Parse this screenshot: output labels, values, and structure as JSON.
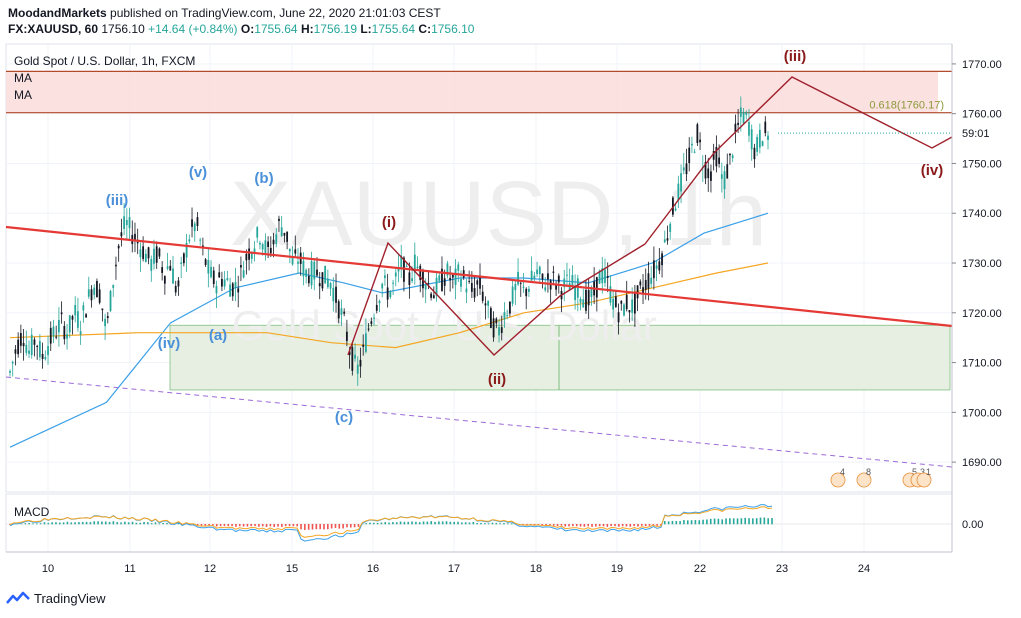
{
  "header": {
    "author": "MoodandMarkets",
    "published": "published on TradingView.com, June 22, 2020 21:01:03 CEST",
    "symbol": "FX:XAUUSD, 60",
    "last": "1756.10",
    "change": "+14.64 (+0.84%)",
    "o_label": "O:",
    "o": "1755.64",
    "h_label": "H:",
    "h": "1756.19",
    "l_label": "L:",
    "l": "1755.64",
    "c_label": "C:",
    "c": "1756.10"
  },
  "legend": {
    "title": "Gold Spot / U.S. Dollar, 1h, FXCM",
    "ma1": "MA",
    "ma2": "MA",
    "macd": "MACD"
  },
  "watermark": {
    "symbol": "XAUUSD, 1h",
    "name": "Gold Spot / U.S. Dollar"
  },
  "footer": {
    "brand": "TradingView"
  },
  "colors": {
    "up": "#26a69a",
    "down": "#131722",
    "trend": "#e53935",
    "wave_dark": "#8b1a1a",
    "wave_blue": "#4a90d9",
    "ma_fast": "#3aa0e8",
    "ma_slow": "#f5a623",
    "zone_red": "#fcdcdc",
    "zone_green": "#e6efe1"
  },
  "chart_data": {
    "type": "candlestick",
    "symbol": "XAUUSD",
    "timeframe": "1h",
    "ylim": [
      1684,
      1774
    ],
    "y_ticks": [
      "1770.00",
      "1760.00",
      "1750.00",
      "1740.00",
      "1730.00",
      "1720.00",
      "1710.00",
      "1700.00",
      "1690.00"
    ],
    "macd_tick": "0.00",
    "x_ticks": [
      "10",
      "11",
      "12",
      "15",
      "16",
      "17",
      "18",
      "19",
      "22",
      "23",
      "24"
    ],
    "fib_label": "0.618(1760.17)",
    "time_left_label": "59:01",
    "last_price_label": "1756.10",
    "resistance_zone": [
      1760.2,
      1768.5
    ],
    "support_zone": [
      1704.5,
      1717.5
    ],
    "price_path": [
      [
        0,
        1708
      ],
      [
        1,
        1713
      ],
      [
        2,
        1716
      ],
      [
        3,
        1712
      ],
      [
        4,
        1715
      ],
      [
        5,
        1711
      ],
      [
        6,
        1714
      ],
      [
        7,
        1716
      ],
      [
        8,
        1718
      ],
      [
        9,
        1716
      ],
      [
        10,
        1720
      ],
      [
        11,
        1718
      ],
      [
        12,
        1722
      ],
      [
        13,
        1726
      ],
      [
        14,
        1724
      ],
      [
        15,
        1716
      ],
      [
        16,
        1726
      ],
      [
        17,
        1734
      ],
      [
        18,
        1738
      ],
      [
        19,
        1736
      ],
      [
        20,
        1734
      ],
      [
        21,
        1732
      ],
      [
        22,
        1730
      ],
      [
        23,
        1732
      ],
      [
        24,
        1728
      ],
      [
        25,
        1730
      ],
      [
        26,
        1724
      ],
      [
        27,
        1730
      ],
      [
        28,
        1736
      ],
      [
        29,
        1738
      ],
      [
        30,
        1732
      ],
      [
        31,
        1728
      ],
      [
        32,
        1726
      ],
      [
        33,
        1727
      ],
      [
        34,
        1726
      ],
      [
        35,
        1725
      ],
      [
        36,
        1728
      ],
      [
        37,
        1732
      ],
      [
        38,
        1734
      ],
      [
        39,
        1736
      ],
      [
        40,
        1732
      ],
      [
        41,
        1734
      ],
      [
        42,
        1738
      ],
      [
        43,
        1736
      ],
      [
        44,
        1730
      ],
      [
        45,
        1731
      ],
      [
        46,
        1728
      ],
      [
        47,
        1728
      ],
      [
        48,
        1728
      ],
      [
        49,
        1727
      ],
      [
        50,
        1726
      ],
      [
        51,
        1722
      ],
      [
        52,
        1718
      ],
      [
        53,
        1712
      ],
      [
        54,
        1708
      ],
      [
        55,
        1712
      ],
      [
        56,
        1718
      ],
      [
        57,
        1722
      ],
      [
        58,
        1726
      ],
      [
        59,
        1724
      ],
      [
        60,
        1726
      ],
      [
        61,
        1730
      ],
      [
        62,
        1726
      ],
      [
        63,
        1730
      ],
      [
        64,
        1728
      ],
      [
        65,
        1726
      ],
      [
        66,
        1724
      ],
      [
        67,
        1726
      ],
      [
        68,
        1728
      ],
      [
        69,
        1726
      ],
      [
        70,
        1728
      ],
      [
        71,
        1726
      ],
      [
        72,
        1724
      ],
      [
        73,
        1726
      ],
      [
        74,
        1722
      ],
      [
        75,
        1718
      ],
      [
        76,
        1716
      ],
      [
        77,
        1720
      ],
      [
        78,
        1722
      ],
      [
        79,
        1726
      ],
      [
        80,
        1724
      ],
      [
        81,
        1726
      ],
      [
        82,
        1728
      ],
      [
        83,
        1726
      ],
      [
        84,
        1727
      ],
      [
        85,
        1726
      ],
      [
        86,
        1725
      ],
      [
        87,
        1726
      ],
      [
        88,
        1725
      ],
      [
        89,
        1724
      ],
      [
        90,
        1722
      ],
      [
        91,
        1724
      ],
      [
        92,
        1728
      ],
      [
        93,
        1726
      ],
      [
        94,
        1722
      ],
      [
        95,
        1720
      ],
      [
        96,
        1722
      ],
      [
        97,
        1721
      ],
      [
        98,
        1724
      ],
      [
        99,
        1726
      ],
      [
        100,
        1728
      ],
      [
        101,
        1730
      ],
      [
        102,
        1734
      ],
      [
        103,
        1740
      ],
      [
        104,
        1744
      ],
      [
        105,
        1748
      ],
      [
        106,
        1752
      ],
      [
        107,
        1756
      ],
      [
        108,
        1750
      ],
      [
        109,
        1748
      ],
      [
        110,
        1752
      ],
      [
        111,
        1746
      ],
      [
        112,
        1750
      ],
      [
        113,
        1756
      ],
      [
        114,
        1760
      ],
      [
        115,
        1758
      ],
      [
        116,
        1752
      ],
      [
        117,
        1756
      ],
      [
        118,
        1756
      ]
    ],
    "moving_averages": [
      {
        "name": "MA",
        "color": "#3aa0e8",
        "points": [
          [
            0,
            1693
          ],
          [
            15,
            1702
          ],
          [
            25,
            1718
          ],
          [
            35,
            1725
          ],
          [
            45,
            1728
          ],
          [
            52,
            1726
          ],
          [
            58,
            1724
          ],
          [
            70,
            1727
          ],
          [
            80,
            1727
          ],
          [
            90,
            1726
          ],
          [
            100,
            1730
          ],
          [
            108,
            1736
          ],
          [
            118,
            1740
          ]
        ]
      },
      {
        "name": "MA",
        "color": "#f5a623",
        "points": [
          [
            0,
            1715
          ],
          [
            20,
            1716
          ],
          [
            40,
            1716
          ],
          [
            50,
            1714
          ],
          [
            60,
            1713
          ],
          [
            70,
            1716
          ],
          [
            80,
            1720
          ],
          [
            90,
            1722
          ],
          [
            100,
            1725
          ],
          [
            110,
            1728
          ],
          [
            118,
            1730
          ]
        ]
      }
    ],
    "wave_labels": [
      {
        "text": "(iii)",
        "color": "blue"
      },
      {
        "text": "(v)",
        "color": "blue"
      },
      {
        "text": "(b)",
        "color": "blue"
      },
      {
        "text": "(iv)",
        "color": "blue"
      },
      {
        "text": "(a)",
        "color": "blue"
      },
      {
        "text": "(c)",
        "color": "blue"
      },
      {
        "text": "(i)",
        "color": "dark"
      },
      {
        "text": "(ii)",
        "color": "dark"
      },
      {
        "text": "(iii)",
        "color": "dark"
      },
      {
        "text": "(iv)",
        "color": "dark"
      }
    ],
    "event_labels": [
      "4",
      "8",
      "5",
      "3",
      "1"
    ]
  }
}
